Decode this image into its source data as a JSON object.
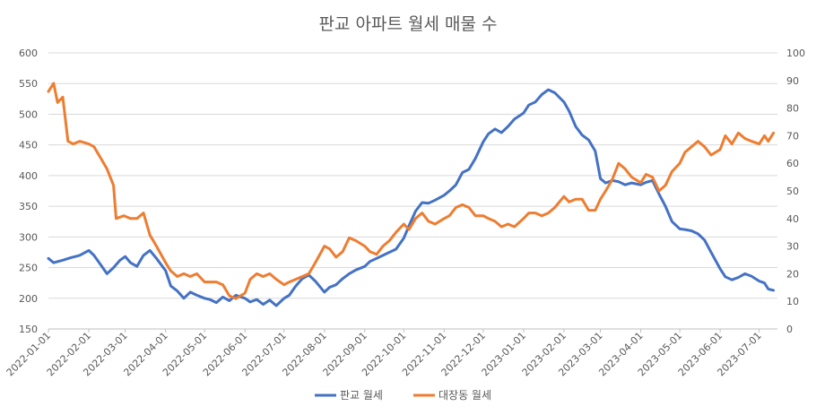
{
  "chart_data": {
    "type": "line",
    "title": "판교 아파트 월세 매물 수",
    "xlabel": "",
    "ylabel": "",
    "x": [
      "2022-01-01",
      "2022-02-01",
      "2022-03-01",
      "2022-04-01",
      "2022-05-01",
      "2022-06-01",
      "2022-07-01",
      "2022-08-01",
      "2022-09-01",
      "2022-10-01",
      "2022-11-01",
      "2022-12-01",
      "2023-01-01",
      "2023-02-01",
      "2023-03-01",
      "2023-04-01",
      "2023-05-01",
      "2023-06-01",
      "2023-07-01",
      "2023-07-15"
    ],
    "x_tick_labels": [
      "2022-01-01",
      "2022-02-01",
      "2022-03-01",
      "2022-04-01",
      "2022-05-01",
      "2022-06-01",
      "2022-07-01",
      "2022-08-01",
      "2022-09-01",
      "2022-10-01",
      "2022-11-01",
      "2022-12-01",
      "2023-01-01",
      "2023-02-01",
      "2023-03-01",
      "2023-04-01",
      "2023-05-01",
      "2023-06-01",
      "2023-07-01"
    ],
    "y_left": {
      "ylim": [
        150,
        600
      ],
      "ticks": [
        150,
        200,
        250,
        300,
        350,
        400,
        450,
        500,
        550,
        600
      ]
    },
    "y_right": {
      "ylim": [
        0,
        100
      ],
      "ticks": [
        0,
        10,
        20,
        30,
        40,
        50,
        60,
        70,
        80,
        90,
        100
      ]
    },
    "grid": true,
    "legend": "bottom",
    "series": [
      {
        "name": "판교 월세",
        "axis": "left",
        "color": "#4472C4",
        "points": [
          [
            "2022-01-01",
            265
          ],
          [
            "2022-01-05",
            258
          ],
          [
            "2022-01-12",
            262
          ],
          [
            "2022-01-18",
            266
          ],
          [
            "2022-01-25",
            270
          ],
          [
            "2022-02-01",
            278
          ],
          [
            "2022-02-05",
            270
          ],
          [
            "2022-02-10",
            255
          ],
          [
            "2022-02-15",
            240
          ],
          [
            "2022-02-20",
            250
          ],
          [
            "2022-02-25",
            262
          ],
          [
            "2022-03-01",
            268
          ],
          [
            "2022-03-05",
            258
          ],
          [
            "2022-03-10",
            252
          ],
          [
            "2022-03-15",
            270
          ],
          [
            "2022-03-20",
            278
          ],
          [
            "2022-03-25",
            265
          ],
          [
            "2022-04-01",
            245
          ],
          [
            "2022-04-05",
            220
          ],
          [
            "2022-04-10",
            212
          ],
          [
            "2022-04-15",
            200
          ],
          [
            "2022-04-20",
            210
          ],
          [
            "2022-04-25",
            205
          ],
          [
            "2022-05-01",
            200
          ],
          [
            "2022-05-05",
            198
          ],
          [
            "2022-05-10",
            193
          ],
          [
            "2022-05-15",
            202
          ],
          [
            "2022-05-20",
            196
          ],
          [
            "2022-05-25",
            205
          ],
          [
            "2022-06-01",
            200
          ],
          [
            "2022-06-05",
            194
          ],
          [
            "2022-06-10",
            198
          ],
          [
            "2022-06-15",
            190
          ],
          [
            "2022-06-20",
            197
          ],
          [
            "2022-06-25",
            188
          ],
          [
            "2022-07-01",
            200
          ],
          [
            "2022-07-05",
            205
          ],
          [
            "2022-07-10",
            220
          ],
          [
            "2022-07-15",
            232
          ],
          [
            "2022-07-20",
            238
          ],
          [
            "2022-07-25",
            228
          ],
          [
            "2022-08-01",
            210
          ],
          [
            "2022-08-05",
            218
          ],
          [
            "2022-08-10",
            222
          ],
          [
            "2022-08-15",
            232
          ],
          [
            "2022-08-20",
            240
          ],
          [
            "2022-08-25",
            246
          ],
          [
            "2022-09-01",
            252
          ],
          [
            "2022-09-05",
            260
          ],
          [
            "2022-09-10",
            265
          ],
          [
            "2022-09-15",
            270
          ],
          [
            "2022-09-20",
            275
          ],
          [
            "2022-09-25",
            280
          ],
          [
            "2022-10-01",
            298
          ],
          [
            "2022-10-05",
            318
          ],
          [
            "2022-10-10",
            342
          ],
          [
            "2022-10-15",
            356
          ],
          [
            "2022-10-20",
            355
          ],
          [
            "2022-10-25",
            360
          ],
          [
            "2022-11-01",
            368
          ],
          [
            "2022-11-05",
            375
          ],
          [
            "2022-11-10",
            385
          ],
          [
            "2022-11-15",
            405
          ],
          [
            "2022-11-20",
            410
          ],
          [
            "2022-11-25",
            428
          ],
          [
            "2022-12-01",
            455
          ],
          [
            "2022-12-05",
            468
          ],
          [
            "2022-12-10",
            476
          ],
          [
            "2022-12-15",
            470
          ],
          [
            "2022-12-20",
            480
          ],
          [
            "2022-12-25",
            492
          ],
          [
            "2023-01-01",
            502
          ],
          [
            "2023-01-05",
            515
          ],
          [
            "2023-01-10",
            520
          ],
          [
            "2023-01-15",
            532
          ],
          [
            "2023-01-20",
            540
          ],
          [
            "2023-01-25",
            535
          ],
          [
            "2023-02-01",
            520
          ],
          [
            "2023-02-05",
            505
          ],
          [
            "2023-02-10",
            480
          ],
          [
            "2023-02-15",
            466
          ],
          [
            "2023-02-20",
            458
          ],
          [
            "2023-02-25",
            440
          ],
          [
            "2023-03-01",
            395
          ],
          [
            "2023-03-05",
            388
          ],
          [
            "2023-03-10",
            392
          ],
          [
            "2023-03-15",
            390
          ],
          [
            "2023-03-20",
            385
          ],
          [
            "2023-03-25",
            388
          ],
          [
            "2023-04-01",
            385
          ],
          [
            "2023-04-05",
            389
          ],
          [
            "2023-04-10",
            392
          ],
          [
            "2023-04-15",
            370
          ],
          [
            "2023-04-20",
            350
          ],
          [
            "2023-04-25",
            325
          ],
          [
            "2023-05-01",
            313
          ],
          [
            "2023-05-05",
            312
          ],
          [
            "2023-05-10",
            310
          ],
          [
            "2023-05-15",
            305
          ],
          [
            "2023-05-20",
            295
          ],
          [
            "2023-05-25",
            275
          ],
          [
            "2023-06-01",
            248
          ],
          [
            "2023-06-05",
            235
          ],
          [
            "2023-06-10",
            230
          ],
          [
            "2023-06-15",
            234
          ],
          [
            "2023-06-20",
            240
          ],
          [
            "2023-06-25",
            236
          ],
          [
            "2023-07-01",
            228
          ],
          [
            "2023-07-05",
            225
          ],
          [
            "2023-07-08",
            215
          ],
          [
            "2023-07-12",
            213
          ]
        ]
      },
      {
        "name": "대장동 월세",
        "axis": "right",
        "color": "#ED7D31",
        "points": [
          [
            "2022-01-01",
            86
          ],
          [
            "2022-01-05",
            89
          ],
          [
            "2022-01-08",
            82
          ],
          [
            "2022-01-12",
            84
          ],
          [
            "2022-01-16",
            68
          ],
          [
            "2022-01-20",
            67
          ],
          [
            "2022-01-25",
            68
          ],
          [
            "2022-02-01",
            67
          ],
          [
            "2022-02-05",
            66
          ],
          [
            "2022-02-10",
            62
          ],
          [
            "2022-02-15",
            58
          ],
          [
            "2022-02-20",
            52
          ],
          [
            "2022-02-22",
            40
          ],
          [
            "2022-02-28",
            41
          ],
          [
            "2022-03-05",
            40
          ],
          [
            "2022-03-10",
            40
          ],
          [
            "2022-03-15",
            42
          ],
          [
            "2022-03-20",
            34
          ],
          [
            "2022-03-25",
            30
          ],
          [
            "2022-04-01",
            24
          ],
          [
            "2022-04-05",
            21
          ],
          [
            "2022-04-10",
            19
          ],
          [
            "2022-04-15",
            20
          ],
          [
            "2022-04-20",
            19
          ],
          [
            "2022-04-25",
            20
          ],
          [
            "2022-05-01",
            17
          ],
          [
            "2022-05-10",
            17
          ],
          [
            "2022-05-15",
            16
          ],
          [
            "2022-05-20",
            12
          ],
          [
            "2022-05-25",
            11
          ],
          [
            "2022-06-01",
            13
          ],
          [
            "2022-06-05",
            18
          ],
          [
            "2022-06-10",
            20
          ],
          [
            "2022-06-15",
            19
          ],
          [
            "2022-06-20",
            20
          ],
          [
            "2022-06-25",
            18
          ],
          [
            "2022-07-01",
            16
          ],
          [
            "2022-07-05",
            17
          ],
          [
            "2022-07-10",
            18
          ],
          [
            "2022-07-15",
            19
          ],
          [
            "2022-07-20",
            20
          ],
          [
            "2022-07-25",
            24
          ],
          [
            "2022-08-01",
            30
          ],
          [
            "2022-08-05",
            29
          ],
          [
            "2022-08-10",
            26
          ],
          [
            "2022-08-15",
            28
          ],
          [
            "2022-08-20",
            33
          ],
          [
            "2022-08-25",
            32
          ],
          [
            "2022-09-01",
            30
          ],
          [
            "2022-09-05",
            28
          ],
          [
            "2022-09-10",
            27
          ],
          [
            "2022-09-15",
            30
          ],
          [
            "2022-09-20",
            32
          ],
          [
            "2022-09-25",
            35
          ],
          [
            "2022-10-01",
            38
          ],
          [
            "2022-10-05",
            36
          ],
          [
            "2022-10-10",
            40
          ],
          [
            "2022-10-15",
            42
          ],
          [
            "2022-10-20",
            39
          ],
          [
            "2022-10-25",
            38
          ],
          [
            "2022-11-01",
            40
          ],
          [
            "2022-11-05",
            41
          ],
          [
            "2022-11-10",
            44
          ],
          [
            "2022-11-15",
            45
          ],
          [
            "2022-11-20",
            44
          ],
          [
            "2022-11-25",
            41
          ],
          [
            "2022-12-01",
            41
          ],
          [
            "2022-12-05",
            40
          ],
          [
            "2022-12-10",
            39
          ],
          [
            "2022-12-15",
            37
          ],
          [
            "2022-12-20",
            38
          ],
          [
            "2022-12-25",
            37
          ],
          [
            "2023-01-01",
            40
          ],
          [
            "2023-01-05",
            42
          ],
          [
            "2023-01-10",
            42
          ],
          [
            "2023-01-15",
            41
          ],
          [
            "2023-01-20",
            42
          ],
          [
            "2023-01-25",
            44
          ],
          [
            "2023-02-01",
            48
          ],
          [
            "2023-02-05",
            46
          ],
          [
            "2023-02-10",
            47
          ],
          [
            "2023-02-15",
            47
          ],
          [
            "2023-02-20",
            43
          ],
          [
            "2023-02-25",
            43
          ],
          [
            "2023-03-01",
            47
          ],
          [
            "2023-03-05",
            50
          ],
          [
            "2023-03-10",
            54
          ],
          [
            "2023-03-15",
            60
          ],
          [
            "2023-03-20",
            58
          ],
          [
            "2023-03-25",
            55
          ],
          [
            "2023-04-01",
            53
          ],
          [
            "2023-04-05",
            56
          ],
          [
            "2023-04-10",
            55
          ],
          [
            "2023-04-15",
            50
          ],
          [
            "2023-04-20",
            52
          ],
          [
            "2023-04-25",
            57
          ],
          [
            "2023-05-01",
            60
          ],
          [
            "2023-05-05",
            64
          ],
          [
            "2023-05-10",
            66
          ],
          [
            "2023-05-15",
            68
          ],
          [
            "2023-05-20",
            66
          ],
          [
            "2023-05-25",
            63
          ],
          [
            "2023-06-01",
            65
          ],
          [
            "2023-06-05",
            70
          ],
          [
            "2023-06-10",
            67
          ],
          [
            "2023-06-15",
            71
          ],
          [
            "2023-06-20",
            69
          ],
          [
            "2023-06-25",
            68
          ],
          [
            "2023-07-01",
            67
          ],
          [
            "2023-07-05",
            70
          ],
          [
            "2023-07-08",
            68
          ],
          [
            "2023-07-12",
            71
          ]
        ]
      }
    ]
  }
}
